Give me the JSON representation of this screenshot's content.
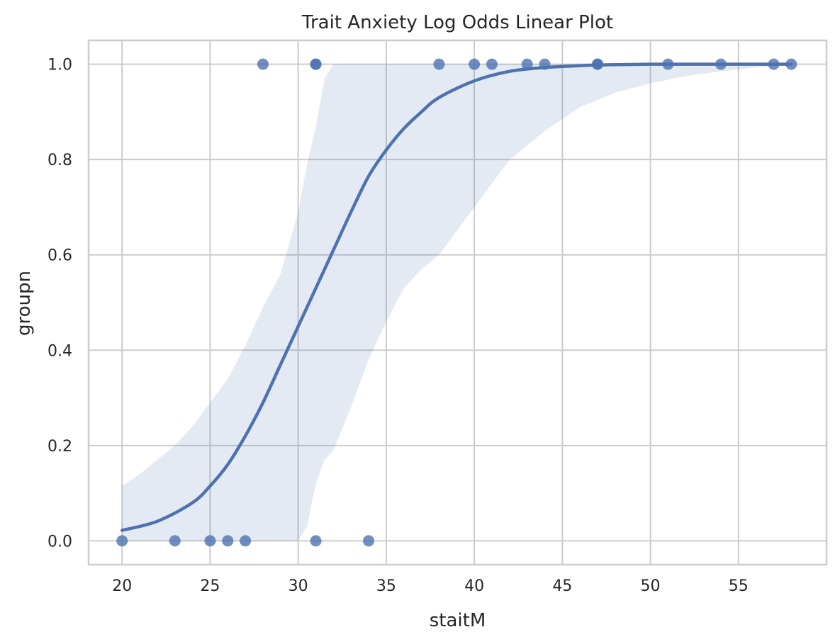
{
  "chart_data": {
    "type": "scatter",
    "title": "Trait Anxiety Log Odds Linear Plot",
    "xlabel": "staitM",
    "ylabel": "groupn",
    "xlim": [
      18.1,
      60.0
    ],
    "ylim": [
      -0.05,
      1.05
    ],
    "xticks": [
      20,
      25,
      30,
      35,
      40,
      45,
      50,
      55
    ],
    "yticks": [
      0.0,
      0.2,
      0.4,
      0.6,
      0.8,
      1.0
    ],
    "xtick_labels": [
      "20",
      "25",
      "30",
      "35",
      "40",
      "45",
      "50",
      "55"
    ],
    "ytick_labels": [
      "0.0",
      "0.2",
      "0.4",
      "0.6",
      "0.8",
      "1.0"
    ],
    "grid": true,
    "colors": {
      "points": "#4c72b0",
      "line": "#4c72b0",
      "band": "#4c72b0",
      "grid": "#cccccc"
    },
    "points": [
      {
        "x": 20,
        "y": 0
      },
      {
        "x": 23,
        "y": 0
      },
      {
        "x": 25,
        "y": 0
      },
      {
        "x": 26,
        "y": 0
      },
      {
        "x": 27,
        "y": 0
      },
      {
        "x": 31,
        "y": 0
      },
      {
        "x": 34,
        "y": 0
      },
      {
        "x": 28,
        "y": 1
      },
      {
        "x": 31,
        "y": 1
      },
      {
        "x": 31,
        "y": 1
      },
      {
        "x": 38,
        "y": 1
      },
      {
        "x": 40,
        "y": 1
      },
      {
        "x": 41,
        "y": 1
      },
      {
        "x": 43,
        "y": 1
      },
      {
        "x": 44,
        "y": 1
      },
      {
        "x": 47,
        "y": 1
      },
      {
        "x": 47,
        "y": 1
      },
      {
        "x": 51,
        "y": 1
      },
      {
        "x": 54,
        "y": 1
      },
      {
        "x": 57,
        "y": 1
      },
      {
        "x": 58,
        "y": 1
      }
    ],
    "fit": {
      "type": "logistic",
      "x_range": [
        20,
        58
      ],
      "x": [
        20,
        22,
        24,
        25,
        26,
        27,
        28,
        29,
        30,
        31,
        32,
        33,
        34,
        35,
        36,
        37,
        38,
        40,
        42,
        44,
        46,
        48,
        50,
        52,
        54,
        56,
        58
      ],
      "y": [
        0.022,
        0.041,
        0.08,
        0.115,
        0.16,
        0.22,
        0.29,
        0.37,
        0.45,
        0.53,
        0.61,
        0.69,
        0.765,
        0.82,
        0.865,
        0.9,
        0.93,
        0.965,
        0.985,
        0.993,
        0.997,
        0.999,
        1.0,
        1.0,
        1.0,
        1.0,
        1.0
      ]
    },
    "confidence_band": {
      "x": [
        20,
        21,
        22,
        23,
        24,
        25,
        26,
        27,
        28,
        29,
        30,
        30.5,
        31,
        31.5,
        32,
        33,
        34,
        35,
        36,
        37,
        38,
        40,
        42,
        44,
        46,
        48,
        50,
        52,
        54,
        56,
        58
      ],
      "lower": [
        0.0,
        0.0,
        0.0,
        0.0,
        0.0,
        0.0,
        0.0,
        0.0,
        0.0,
        0.0,
        0.0,
        0.03,
        0.12,
        0.17,
        0.19,
        0.28,
        0.38,
        0.46,
        0.53,
        0.57,
        0.6,
        0.7,
        0.8,
        0.86,
        0.91,
        0.94,
        0.96,
        0.975,
        0.985,
        0.993,
        1.0
      ],
      "upper": [
        0.115,
        0.14,
        0.17,
        0.2,
        0.24,
        0.29,
        0.34,
        0.41,
        0.49,
        0.56,
        0.69,
        0.79,
        0.87,
        0.97,
        1.0,
        1.0,
        1.0,
        1.0,
        1.0,
        1.0,
        1.0,
        1.0,
        1.0,
        1.0,
        1.0,
        1.0,
        1.0,
        1.0,
        1.0,
        1.0,
        1.0
      ]
    }
  }
}
